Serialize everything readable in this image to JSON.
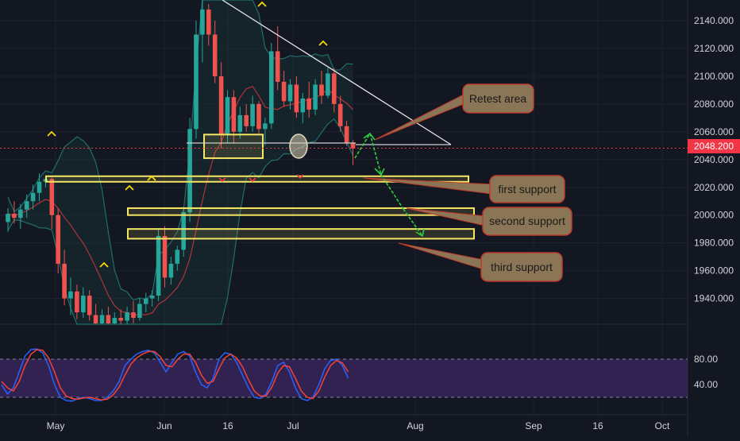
{
  "colors": {
    "background": "#131722",
    "up_candle": "#26a69a",
    "down_candle": "#ef5350",
    "bollinger": "#1f6f6a",
    "ma": "#b3333a",
    "current_price_line": "#f23645",
    "support_box": "#f5e663",
    "callout_fill": "#8a7656",
    "callout_border": "#c0392b",
    "stoch_k": "#2962ff",
    "stoch_d": "#f44336",
    "stoch_band": "#4a2b7a",
    "trendline": "#e6e6e6",
    "arrow": "#2ecc40"
  },
  "price_tag": "2048.200",
  "annotations": {
    "retest": "Retest area",
    "first": "first support",
    "second": "second support",
    "third": "third support"
  },
  "chart_data": [
    {
      "type": "candlestick",
      "title": "",
      "price_axis": {
        "ticks": [
          "2140.000",
          "2120.000",
          "2100.000",
          "2080.000",
          "2060.000",
          "2040.000",
          "2020.000",
          "2000.000",
          "1980.000",
          "1960.000",
          "1940.000"
        ],
        "ylim": [
          1920,
          2152
        ]
      },
      "current_price": 2048.2,
      "time_axis": {
        "ticks": [
          "May",
          "Jun",
          "16",
          "Jul",
          "Aug",
          "Sep",
          "16",
          "Oct"
        ]
      },
      "support_levels": [
        {
          "name": "first support",
          "range": [
            2024,
            2028
          ]
        },
        {
          "name": "second support",
          "range": [
            2000,
            2005
          ]
        },
        {
          "name": "third support",
          "range": [
            1983,
            1990
          ]
        }
      ],
      "consolidation_box": {
        "range": [
          2041,
          2058
        ]
      },
      "candles": [
        [
          1995,
          2005,
          1988,
          2001
        ],
        [
          2001,
          2010,
          1994,
          1998
        ],
        [
          1998,
          2008,
          1990,
          2004
        ],
        [
          2004,
          2015,
          1998,
          2010
        ],
        [
          2010,
          2022,
          2004,
          2016
        ],
        [
          2016,
          2030,
          2010,
          2024
        ],
        [
          2024,
          2028,
          2020,
          2026
        ],
        [
          2026,
          2027,
          1990,
          2000
        ],
        [
          2000,
          2005,
          1958,
          1965
        ],
        [
          1965,
          1975,
          1935,
          1940
        ],
        [
          1940,
          1955,
          1928,
          1945
        ],
        [
          1945,
          1950,
          1925,
          1930
        ],
        [
          1930,
          1948,
          1926,
          1942
        ],
        [
          1942,
          1946,
          1924,
          1928
        ],
        [
          1928,
          1936,
          1918,
          1922
        ],
        [
          1922,
          1932,
          1918,
          1928
        ],
        [
          1928,
          1934,
          1918,
          1922
        ],
        [
          1922,
          1930,
          1918,
          1926
        ],
        [
          1926,
          1932,
          1920,
          1924
        ],
        [
          1924,
          1934,
          1920,
          1930
        ],
        [
          1930,
          1938,
          1922,
          1926
        ],
        [
          1926,
          1940,
          1924,
          1936
        ],
        [
          1936,
          1944,
          1930,
          1940
        ],
        [
          1940,
          1946,
          1934,
          1942
        ],
        [
          1942,
          1990,
          1938,
          1985
        ],
        [
          1985,
          1992,
          1948,
          1955
        ],
        [
          1955,
          1970,
          1950,
          1965
        ],
        [
          1965,
          1978,
          1960,
          1975
        ],
        [
          1975,
          2006,
          1970,
          2002
        ],
        [
          2002,
          2070,
          1995,
          2062
        ],
        [
          2062,
          2140,
          2055,
          2130
        ],
        [
          2130,
          2155,
          2110,
          2148
        ],
        [
          2148,
          2152,
          2122,
          2130
        ],
        [
          2130,
          2140,
          2095,
          2100
        ],
        [
          2100,
          2110,
          2048,
          2058
        ],
        [
          2058,
          2090,
          2052,
          2085
        ],
        [
          2085,
          2090,
          2052,
          2060
        ],
        [
          2060,
          2078,
          2055,
          2072
        ],
        [
          2072,
          2080,
          2060,
          2064
        ],
        [
          2064,
          2086,
          2060,
          2080
        ],
        [
          2080,
          2082,
          2058,
          2062
        ],
        [
          2062,
          2070,
          2050,
          2066
        ],
        [
          2066,
          2124,
          2062,
          2118
        ],
        [
          2118,
          2136,
          2090,
          2096
        ],
        [
          2096,
          2104,
          2078,
          2082
        ],
        [
          2082,
          2098,
          2076,
          2094
        ],
        [
          2094,
          2100,
          2070,
          2074
        ],
        [
          2074,
          2088,
          2066,
          2084
        ],
        [
          2084,
          2096,
          2070,
          2076
        ],
        [
          2076,
          2098,
          2072,
          2094
        ],
        [
          2094,
          2104,
          2080,
          2086
        ],
        [
          2086,
          2106,
          2084,
          2102
        ],
        [
          2102,
          2106,
          2074,
          2080
        ],
        [
          2080,
          2086,
          2060,
          2064
        ],
        [
          2064,
          2068,
          2050,
          2052
        ],
        [
          2052,
          2054,
          2036,
          2048
        ]
      ]
    },
    {
      "type": "line",
      "title": "",
      "value_axis": {
        "ticks": [
          "80.00",
          "40.00"
        ],
        "ylim": [
          0,
          100
        ],
        "band": [
          20,
          80
        ]
      },
      "series": [
        {
          "values": [
            40,
            25,
            35,
            60,
            85,
            95,
            96,
            90,
            70,
            40,
            20,
            15,
            14,
            18,
            20,
            18,
            15,
            15,
            20,
            30,
            45,
            70,
            80,
            88,
            92,
            94,
            90,
            75,
            60,
            75,
            88,
            92,
            85,
            60,
            40,
            35,
            50,
            80,
            90,
            88,
            75,
            55,
            35,
            20,
            18,
            25,
            45,
            70,
            75,
            60,
            35,
            18,
            15,
            20,
            40,
            65,
            78,
            80,
            70,
            50
          ]
        },
        {
          "values": [
            45,
            35,
            30,
            45,
            70,
            88,
            95,
            94,
            82,
            60,
            35,
            22,
            18,
            17,
            19,
            20,
            18,
            16,
            17,
            24,
            36,
            55,
            72,
            82,
            88,
            92,
            92,
            84,
            70,
            68,
            80,
            88,
            88,
            75,
            55,
            42,
            45,
            65,
            82,
            88,
            82,
            68,
            48,
            30,
            22,
            22,
            36,
            58,
            70,
            68,
            50,
            30,
            20,
            18,
            30,
            52,
            70,
            78,
            74,
            60
          ]
        }
      ]
    }
  ]
}
